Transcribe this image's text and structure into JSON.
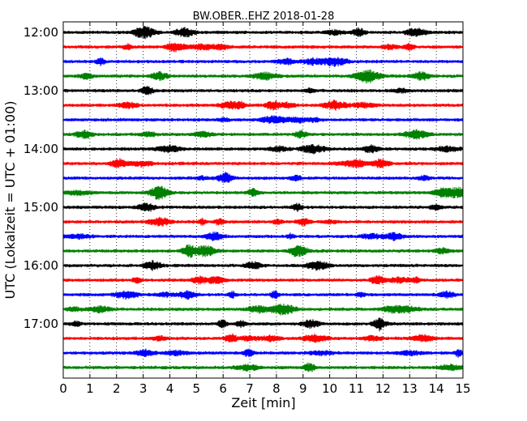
{
  "chart_data": {
    "type": "line",
    "title": "BW.OBER..EHZ 2018-01-28",
    "xlabel": "Zeit  [min]",
    "ylabel": "UTC (Lokalzeit = UTC + 01:00)",
    "xlim": [
      0,
      15
    ],
    "x_ticks": [
      0,
      1,
      2,
      3,
      4,
      5,
      6,
      7,
      8,
      9,
      10,
      11,
      12,
      13,
      14,
      15
    ],
    "x_tick_labels": [
      "0",
      "1",
      "2",
      "3",
      "4",
      "5",
      "6",
      "7",
      "8",
      "9",
      "10",
      "11",
      "12",
      "13",
      "14",
      "15"
    ],
    "grid": "vertical dotted",
    "y_tick_labels": [
      "12:00",
      "13:00",
      "14:00",
      "15:00",
      "16:00",
      "17:00"
    ],
    "trace_color_cycle": [
      "#000000",
      "#ff0000",
      "#0000ff",
      "#008000"
    ],
    "traces": [
      {
        "start": "12:00",
        "color": "#000000"
      },
      {
        "start": "12:15",
        "color": "#ff0000"
      },
      {
        "start": "12:30",
        "color": "#0000ff"
      },
      {
        "start": "12:45",
        "color": "#008000"
      },
      {
        "start": "13:00",
        "color": "#000000"
      },
      {
        "start": "13:15",
        "color": "#ff0000"
      },
      {
        "start": "13:30",
        "color": "#0000ff"
      },
      {
        "start": "13:45",
        "color": "#008000"
      },
      {
        "start": "14:00",
        "color": "#000000"
      },
      {
        "start": "14:15",
        "color": "#ff0000"
      },
      {
        "start": "14:30",
        "color": "#0000ff"
      },
      {
        "start": "14:45",
        "color": "#008000"
      },
      {
        "start": "15:00",
        "color": "#000000"
      },
      {
        "start": "15:15",
        "color": "#ff0000"
      },
      {
        "start": "15:30",
        "color": "#0000ff"
      },
      {
        "start": "15:45",
        "color": "#008000"
      },
      {
        "start": "16:00",
        "color": "#000000"
      },
      {
        "start": "16:15",
        "color": "#ff0000"
      },
      {
        "start": "16:30",
        "color": "#0000ff"
      },
      {
        "start": "16:45",
        "color": "#008000"
      },
      {
        "start": "17:00",
        "color": "#000000"
      },
      {
        "start": "17:15",
        "color": "#ff0000"
      },
      {
        "start": "17:30",
        "color": "#0000ff"
      },
      {
        "start": "17:45",
        "color": "#008000"
      }
    ]
  }
}
